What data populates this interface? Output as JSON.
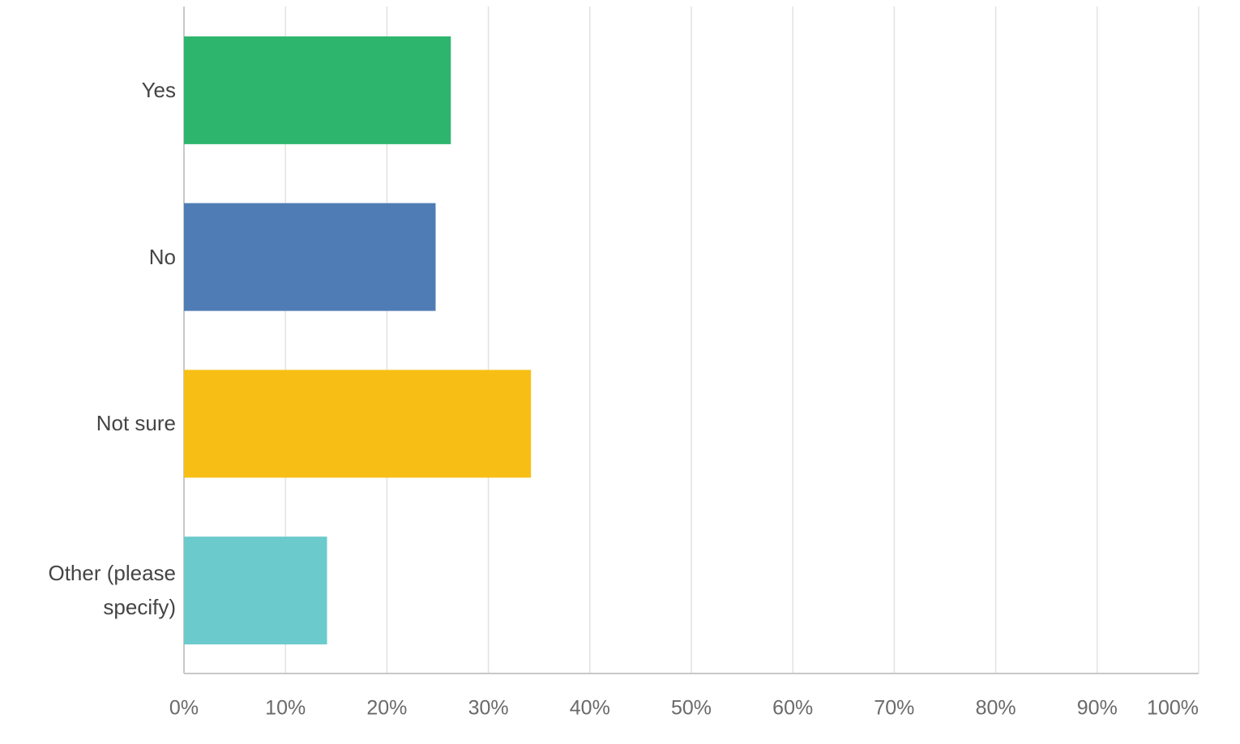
{
  "chart_data": {
    "type": "bar",
    "orientation": "horizontal",
    "categories": [
      "Yes",
      "No",
      "Not sure",
      "Other (please specify)"
    ],
    "values": [
      26.3,
      24.8,
      34.2,
      14.1
    ],
    "colors": [
      "#2db56e",
      "#4f7cb5",
      "#f7bf16",
      "#6bcacb"
    ],
    "xlim": [
      0,
      100
    ],
    "xticks": [
      {
        "value": 0,
        "label": "0%"
      },
      {
        "value": 10,
        "label": "10%"
      },
      {
        "value": 20,
        "label": "20%"
      },
      {
        "value": 30,
        "label": "30%"
      },
      {
        "value": 40,
        "label": "40%"
      },
      {
        "value": 50,
        "label": "50%"
      },
      {
        "value": 60,
        "label": "60%"
      },
      {
        "value": 70,
        "label": "70%"
      },
      {
        "value": 80,
        "label": "80%"
      },
      {
        "value": 90,
        "label": "90%"
      },
      {
        "value": 100,
        "label": "100%"
      }
    ],
    "grid": true
  }
}
